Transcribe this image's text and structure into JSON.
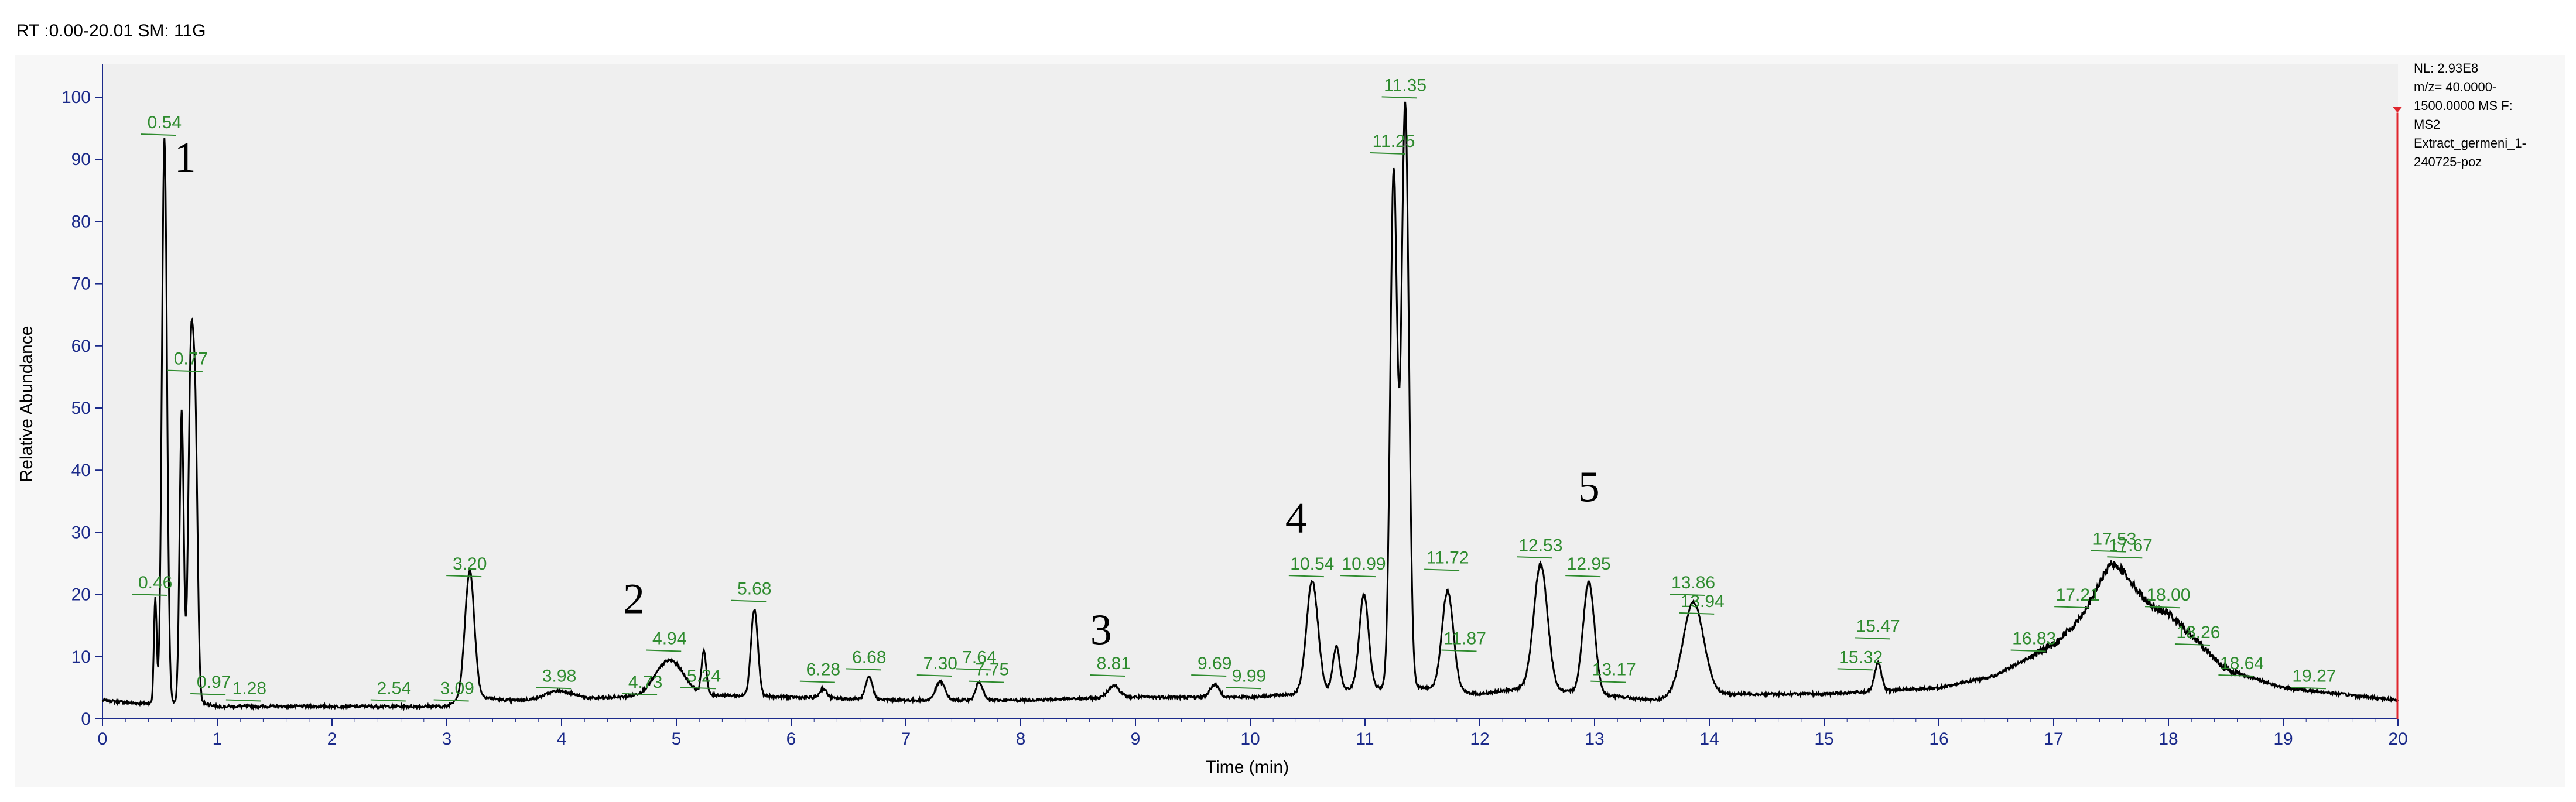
{
  "header": {
    "text": "RT :0.00-20.01 SM: 11G"
  },
  "info_box": {
    "lines": [
      "NL: 2.93E8",
      "m/z= 40.0000-",
      "1500.0000 MS  F:",
      "MS2",
      "Extract_germeni_1-",
      "240725-poz"
    ]
  },
  "colors": {
    "trace": "#000000",
    "axis": "#1b2a8a",
    "labels": "#2e8b2e",
    "marker": "#e0262d",
    "plot_bg": "#f0f0f0"
  },
  "chart_data": {
    "type": "line",
    "xlabel": "Time (min)",
    "ylabel": "Relative Abundance",
    "xlim": [
      0,
      20
    ],
    "ylim": [
      0,
      100
    ],
    "xticks": [
      0,
      1,
      2,
      3,
      4,
      5,
      6,
      7,
      8,
      9,
      10,
      11,
      12,
      13,
      14,
      15,
      16,
      17,
      18,
      19,
      20
    ],
    "yticks": [
      0,
      10,
      20,
      30,
      40,
      50,
      60,
      70,
      80,
      90,
      100
    ],
    "baseline": [
      [
        0.0,
        3
      ],
      [
        0.3,
        2.5
      ],
      [
        0.9,
        2.5
      ],
      [
        1.0,
        2
      ],
      [
        3.0,
        2
      ],
      [
        3.15,
        4
      ],
      [
        3.5,
        3
      ],
      [
        4.0,
        3
      ],
      [
        4.5,
        3.5
      ],
      [
        5.0,
        4
      ],
      [
        6.0,
        3.5
      ],
      [
        7.0,
        3
      ],
      [
        8.0,
        3
      ],
      [
        9.0,
        3.5
      ],
      [
        10.0,
        3.5
      ],
      [
        10.4,
        4
      ],
      [
        11.0,
        5
      ],
      [
        11.5,
        5
      ],
      [
        12.0,
        4
      ],
      [
        12.4,
        5
      ],
      [
        13.0,
        4
      ],
      [
        13.5,
        3
      ],
      [
        14.0,
        4
      ],
      [
        15.0,
        4
      ],
      [
        16.0,
        5
      ],
      [
        16.5,
        7
      ],
      [
        17.0,
        12
      ],
      [
        17.5,
        20
      ],
      [
        18.0,
        17
      ],
      [
        18.5,
        8
      ],
      [
        19.0,
        5
      ],
      [
        19.5,
        4
      ],
      [
        20.0,
        3
      ]
    ],
    "peaks": [
      {
        "rt": 0.46,
        "height": 17,
        "width": 0.012
      },
      {
        "rt": 0.54,
        "height": 91,
        "width": 0.022
      },
      {
        "rt": 0.69,
        "height": 47,
        "width": 0.018
      },
      {
        "rt": 0.77,
        "height": 54,
        "width": 0.022
      },
      {
        "rt": 0.81,
        "height": 40,
        "width": 0.02
      },
      {
        "rt": 3.2,
        "height": 20,
        "width": 0.04
      },
      {
        "rt": 3.98,
        "height": 1.5,
        "width": 0.12
      },
      {
        "rt": 4.94,
        "height": 5.5,
        "width": 0.12
      },
      {
        "rt": 5.24,
        "height": 7,
        "width": 0.02
      },
      {
        "rt": 5.68,
        "height": 14,
        "width": 0.03
      },
      {
        "rt": 6.28,
        "height": 1.5,
        "width": 0.03
      },
      {
        "rt": 6.68,
        "height": 3.5,
        "width": 0.03
      },
      {
        "rt": 7.3,
        "height": 3,
        "width": 0.04
      },
      {
        "rt": 7.64,
        "height": 3,
        "width": 0.03
      },
      {
        "rt": 8.81,
        "height": 2,
        "width": 0.05
      },
      {
        "rt": 9.69,
        "height": 2,
        "width": 0.04
      },
      {
        "rt": 10.54,
        "height": 18,
        "width": 0.05
      },
      {
        "rt": 10.75,
        "height": 7,
        "width": 0.03
      },
      {
        "rt": 10.99,
        "height": 15,
        "width": 0.04
      },
      {
        "rt": 11.25,
        "height": 83,
        "width": 0.03
      },
      {
        "rt": 11.35,
        "height": 94,
        "width": 0.032
      },
      {
        "rt": 11.72,
        "height": 16,
        "width": 0.05
      },
      {
        "rt": 12.53,
        "height": 20,
        "width": 0.06
      },
      {
        "rt": 12.95,
        "height": 18,
        "width": 0.05
      },
      {
        "rt": 13.86,
        "height": 15,
        "width": 0.09
      },
      {
        "rt": 15.47,
        "height": 4.5,
        "width": 0.03
      },
      {
        "rt": 17.53,
        "height": 5,
        "width": 0.15
      }
    ],
    "peak_labels": [
      {
        "text": "0.54",
        "x": 0.54,
        "y": 95
      },
      {
        "text": "0.77",
        "x": 0.77,
        "y": 57
      },
      {
        "text": "0.46",
        "x": 0.46,
        "y": 21
      },
      {
        "text": "0.97",
        "x": 0.97,
        "y": 5
      },
      {
        "text": "1.28",
        "x": 1.28,
        "y": 4
      },
      {
        "text": "2.54",
        "x": 2.54,
        "y": 4
      },
      {
        "text": "3.09",
        "x": 3.09,
        "y": 4
      },
      {
        "text": "3.20",
        "x": 3.2,
        "y": 24
      },
      {
        "text": "3.98",
        "x": 3.98,
        "y": 6
      },
      {
        "text": "4.73",
        "x": 4.73,
        "y": 5
      },
      {
        "text": "4.94",
        "x": 4.94,
        "y": 12
      },
      {
        "text": "5.24",
        "x": 5.24,
        "y": 6
      },
      {
        "text": "5.68",
        "x": 5.68,
        "y": 20
      },
      {
        "text": "6.28",
        "x": 6.28,
        "y": 7
      },
      {
        "text": "6.68",
        "x": 6.68,
        "y": 9
      },
      {
        "text": "7.30",
        "x": 7.3,
        "y": 8
      },
      {
        "text": "7.64",
        "x": 7.64,
        "y": 9
      },
      {
        "text": "7.75",
        "x": 7.75,
        "y": 7
      },
      {
        "text": "8.81",
        "x": 8.81,
        "y": 8
      },
      {
        "text": "9.69",
        "x": 9.69,
        "y": 8
      },
      {
        "text": "9.99",
        "x": 9.99,
        "y": 6
      },
      {
        "text": "10.54",
        "x": 10.54,
        "y": 24
      },
      {
        "text": "10.99",
        "x": 10.99,
        "y": 24
      },
      {
        "text": "11.25",
        "x": 11.25,
        "y": 92
      },
      {
        "text": "11.35",
        "x": 11.35,
        "y": 101
      },
      {
        "text": "11.72",
        "x": 11.72,
        "y": 25
      },
      {
        "text": "11.87",
        "x": 11.87,
        "y": 12
      },
      {
        "text": "12.53",
        "x": 12.53,
        "y": 27
      },
      {
        "text": "12.95",
        "x": 12.95,
        "y": 24
      },
      {
        "text": "13.17",
        "x": 13.17,
        "y": 7
      },
      {
        "text": "13.86",
        "x": 13.86,
        "y": 21
      },
      {
        "text": "13.94",
        "x": 13.94,
        "y": 18
      },
      {
        "text": "15.32",
        "x": 15.32,
        "y": 9
      },
      {
        "text": "15.47",
        "x": 15.47,
        "y": 14
      },
      {
        "text": "16.83",
        "x": 16.83,
        "y": 12
      },
      {
        "text": "17.21",
        "x": 17.21,
        "y": 19
      },
      {
        "text": "17.53",
        "x": 17.53,
        "y": 28
      },
      {
        "text": "17.67",
        "x": 17.67,
        "y": 27
      },
      {
        "text": "18.00",
        "x": 18.0,
        "y": 19
      },
      {
        "text": "18.26",
        "x": 18.26,
        "y": 13
      },
      {
        "text": "18.64",
        "x": 18.64,
        "y": 8
      },
      {
        "text": "19.27",
        "x": 19.27,
        "y": 6
      }
    ],
    "annotations": [
      {
        "text": "1",
        "x": 0.72,
        "y": 88
      },
      {
        "text": "2",
        "x": 4.63,
        "y": 17
      },
      {
        "text": "3",
        "x": 8.7,
        "y": 12
      },
      {
        "text": "4",
        "x": 10.4,
        "y": 30
      },
      {
        "text": "5",
        "x": 12.95,
        "y": 35
      }
    ]
  }
}
